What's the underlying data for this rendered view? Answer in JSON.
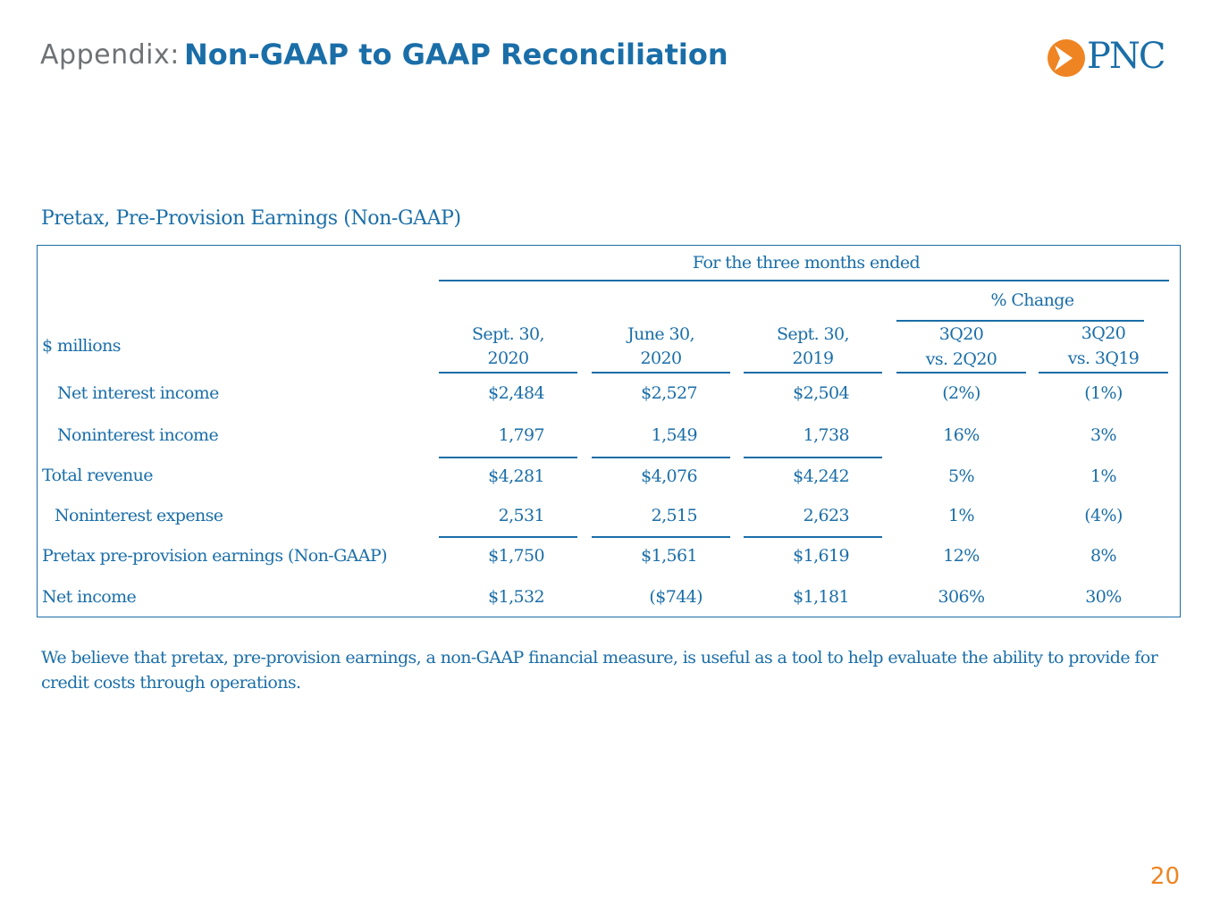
{
  "header": {
    "prefix": "Appendix:",
    "title": "Non-GAAP to GAAP Reconciliation",
    "logo_text": "PNC",
    "brand_color": "#1a6ea8",
    "accent_color": "#ef8422"
  },
  "section": {
    "title": "Pretax, Pre-Provision Earnings  (Non-GAAP)"
  },
  "table": {
    "group_header": "For the three months ended",
    "change_header": "% Change",
    "units_label": "$ millions",
    "columns": [
      {
        "line1": "Sept. 30,",
        "line2": "2020"
      },
      {
        "line1": "June 30,",
        "line2": "2020"
      },
      {
        "line1": "Sept. 30,",
        "line2": "2019"
      },
      {
        "line1": "3Q20",
        "line2": "vs. 2Q20"
      },
      {
        "line1": "3Q20",
        "line2": "vs. 3Q19"
      }
    ],
    "rows": [
      {
        "label": "Net interest income",
        "values": [
          "$2,484",
          "$2,527",
          "$2,504",
          "(2%)",
          "(1%)"
        ]
      },
      {
        "label": "Noninterest income",
        "values": [
          "1,797",
          "1,549",
          "1,738",
          "16%",
          "3%"
        ]
      },
      {
        "label": "Total revenue",
        "values": [
          "$4,281",
          "$4,076",
          "$4,242",
          "5%",
          "1%"
        ]
      },
      {
        "label": "Noninterest expense",
        "values": [
          "2,531",
          "2,515",
          "2,623",
          "1%",
          "(4%)"
        ]
      },
      {
        "label": "Pretax pre-provision earnings (Non-GAAP)",
        "values": [
          "$1,750",
          "$1,561",
          "$1,619",
          "12%",
          "8%"
        ]
      },
      {
        "label": "Net income",
        "values": [
          "$1,532",
          "($744)",
          "$1,181",
          "306%",
          "30%"
        ]
      }
    ]
  },
  "footnote": "We believe that pretax, pre-provision earnings, a non-GAAP financial measure, is useful as a tool to help evaluate the ability to provide for credit costs through operations.",
  "page_number": "20"
}
